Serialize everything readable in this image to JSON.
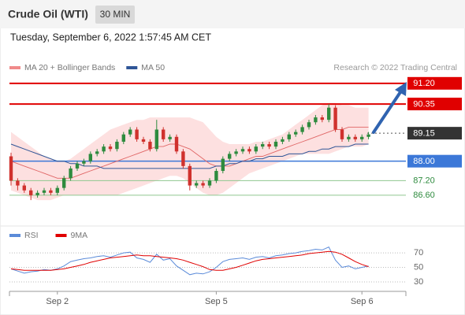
{
  "chart_data": [
    {
      "type": "candlestick",
      "title": "Crude Oil (WTI)",
      "timeframe": "30 MIN",
      "subtitle": "Tuesday, September 6, 2022 1:57:45 AM CET",
      "source": "Research © 2022 Trading Central",
      "ylim": [
        85.4,
        91.55
      ],
      "up_color": "#2e8b3e",
      "down_color": "#d0312d",
      "open": [
        88.2,
        87.2,
        87.0,
        86.8,
        86.6,
        86.7,
        86.8,
        86.7,
        86.9,
        87.3,
        87.7,
        87.9,
        88.0,
        88.3,
        88.4,
        88.6,
        88.5,
        88.8,
        89.1,
        89.3,
        88.9,
        88.8,
        88.5,
        89.3,
        88.9,
        89.0,
        88.4,
        87.8,
        87.0,
        87.1,
        87.0,
        87.2,
        87.6,
        88.1,
        88.3,
        88.4,
        88.5,
        88.4,
        88.6,
        88.7,
        88.6,
        88.8,
        88.9,
        89.1,
        89.2,
        89.4,
        89.6,
        89.8,
        89.7,
        90.2,
        89.3,
        88.9,
        89.0,
        88.9,
        89.0
      ],
      "high": [
        88.35,
        87.3,
        87.1,
        86.9,
        86.8,
        86.9,
        86.9,
        87.0,
        87.4,
        87.8,
        88.0,
        88.1,
        88.4,
        88.5,
        88.7,
        88.7,
        88.9,
        89.2,
        89.4,
        89.4,
        89.0,
        88.9,
        89.7,
        89.4,
        89.1,
        89.1,
        88.5,
        87.9,
        87.2,
        87.2,
        87.3,
        87.7,
        88.2,
        88.4,
        88.5,
        88.6,
        88.6,
        88.7,
        88.8,
        88.8,
        88.9,
        89.0,
        89.2,
        89.3,
        89.5,
        89.7,
        89.9,
        89.9,
        90.35,
        90.3,
        89.4,
        89.1,
        89.1,
        89.1,
        89.2
      ],
      "low": [
        87.0,
        86.8,
        86.7,
        86.4,
        86.5,
        86.6,
        86.6,
        86.6,
        86.8,
        87.2,
        87.6,
        87.8,
        87.9,
        88.2,
        88.3,
        88.4,
        88.4,
        88.7,
        89.0,
        88.8,
        88.7,
        88.4,
        88.4,
        88.8,
        88.8,
        88.3,
        87.7,
        86.8,
        86.9,
        86.9,
        86.9,
        87.1,
        87.5,
        88.0,
        88.2,
        88.3,
        88.3,
        88.3,
        88.5,
        88.5,
        88.5,
        88.7,
        88.8,
        89.0,
        89.1,
        89.3,
        89.5,
        89.6,
        89.6,
        89.2,
        88.8,
        88.8,
        88.8,
        88.8,
        88.9
      ],
      "close": [
        87.2,
        87.0,
        86.8,
        86.6,
        86.7,
        86.8,
        86.7,
        86.9,
        87.3,
        87.7,
        87.9,
        88.0,
        88.3,
        88.4,
        88.6,
        88.5,
        88.8,
        89.1,
        89.3,
        88.9,
        88.8,
        88.5,
        89.3,
        88.9,
        89.0,
        88.4,
        87.8,
        87.0,
        87.1,
        87.0,
        87.2,
        87.6,
        88.1,
        88.3,
        88.4,
        88.5,
        88.4,
        88.6,
        88.7,
        88.6,
        88.8,
        88.9,
        89.1,
        89.2,
        89.4,
        89.6,
        89.8,
        89.7,
        90.2,
        89.3,
        88.9,
        89.0,
        88.9,
        89.0,
        89.1
      ],
      "series": [
        {
          "name": "MA 20 + Bollinger Bands",
          "color": "#e06666",
          "band_color": "#fde0e0",
          "values": [
            88.0,
            87.9,
            87.8,
            87.7,
            87.6,
            87.5,
            87.4,
            87.3,
            87.3,
            87.3,
            87.4,
            87.5,
            87.6,
            87.7,
            87.8,
            87.9,
            88.0,
            88.1,
            88.2,
            88.3,
            88.4,
            88.5,
            88.6,
            88.6,
            88.7,
            88.7,
            88.6,
            88.5,
            88.3,
            88.1,
            87.9,
            87.8,
            87.8,
            87.8,
            87.9,
            88.0,
            88.1,
            88.2,
            88.2,
            88.3,
            88.4,
            88.5,
            88.6,
            88.7,
            88.8,
            88.9,
            89.0,
            89.1,
            89.2,
            89.3,
            89.3,
            89.4,
            89.4,
            89.4,
            89.4
          ],
          "upper": [
            89.2,
            89.0,
            88.8,
            88.6,
            88.4,
            88.2,
            88.1,
            88.0,
            88.0,
            88.1,
            88.3,
            88.5,
            88.7,
            88.9,
            89.1,
            89.3,
            89.4,
            89.5,
            89.6,
            89.7,
            89.7,
            89.8,
            89.8,
            89.8,
            89.8,
            89.8,
            89.8,
            89.8,
            89.7,
            89.6,
            89.3,
            89.0,
            88.8,
            88.7,
            88.7,
            88.7,
            88.7,
            88.8,
            88.8,
            88.9,
            89.0,
            89.1,
            89.3,
            89.5,
            89.7,
            89.9,
            90.1,
            90.3,
            90.4,
            90.4,
            90.3,
            90.3,
            90.2,
            90.2,
            90.2
          ],
          "lower": [
            86.8,
            86.7,
            86.6,
            86.5,
            86.4,
            86.4,
            86.4,
            86.5,
            86.6,
            86.6,
            86.6,
            86.6,
            86.6,
            86.6,
            86.6,
            86.6,
            86.6,
            86.7,
            86.8,
            86.9,
            87.0,
            87.1,
            87.2,
            87.3,
            87.4,
            87.4,
            87.3,
            87.1,
            86.9,
            86.7,
            86.6,
            86.6,
            86.7,
            86.9,
            87.1,
            87.3,
            87.5,
            87.6,
            87.7,
            87.8,
            87.9,
            88.0,
            88.1,
            88.2,
            88.3,
            88.3,
            88.3,
            88.3,
            88.3,
            88.4,
            88.5,
            88.6,
            88.6,
            88.6,
            88.7
          ]
        },
        {
          "name": "MA 50",
          "color": "#2f5597",
          "values": [
            88.7,
            88.6,
            88.5,
            88.4,
            88.3,
            88.2,
            88.1,
            88.0,
            88.0,
            87.9,
            87.9,
            87.8,
            87.8,
            87.8,
            87.7,
            87.7,
            87.7,
            87.7,
            87.7,
            87.7,
            87.7,
            87.7,
            87.7,
            87.7,
            87.7,
            87.7,
            87.7,
            87.7,
            87.7,
            87.7,
            87.7,
            87.8,
            87.8,
            87.9,
            87.9,
            88.0,
            88.0,
            88.1,
            88.1,
            88.2,
            88.2,
            88.2,
            88.3,
            88.3,
            88.3,
            88.4,
            88.4,
            88.5,
            88.5,
            88.6,
            88.6,
            88.6,
            88.7,
            88.7,
            88.7
          ]
        }
      ],
      "levels": [
        {
          "value": 91.2,
          "label": "91.20",
          "color": "#e00000",
          "style": "box"
        },
        {
          "value": 90.35,
          "label": "90.35",
          "color": "#e00000",
          "style": "box"
        },
        {
          "value": 89.15,
          "label": "89.15",
          "color": "#333333",
          "style": "box-dotted"
        },
        {
          "value": 88.0,
          "label": "88.00",
          "color": "#3c78d8",
          "style": "box"
        },
        {
          "value": 87.2,
          "label": "87.20",
          "color": "#2e8b3e",
          "style": "text"
        },
        {
          "value": 86.6,
          "label": "86.60",
          "color": "#2e8b3e",
          "style": "text"
        }
      ]
    },
    {
      "type": "line",
      "categories": [
        null,
        null,
        null,
        null,
        null,
        null,
        null,
        "Sep 2",
        null,
        null,
        null,
        null,
        null,
        null,
        null,
        null,
        null,
        null,
        null,
        null,
        null,
        null,
        null,
        null,
        null,
        null,
        null,
        null,
        null,
        null,
        null,
        "Sep 5",
        null,
        null,
        null,
        null,
        null,
        null,
        null,
        null,
        null,
        null,
        null,
        null,
        null,
        null,
        null,
        null,
        null,
        null,
        null,
        null,
        null,
        "Sep 6",
        null
      ],
      "ylim": [
        17,
        82
      ],
      "yticks": [
        30,
        50,
        70
      ],
      "grid": true,
      "series": [
        {
          "name": "RSI",
          "color": "#5b8bd9",
          "values": [
            48,
            45,
            42,
            44,
            45,
            47,
            46,
            48,
            52,
            58,
            60,
            62,
            63,
            65,
            66,
            64,
            67,
            70,
            71,
            63,
            61,
            57,
            68,
            60,
            62,
            52,
            46,
            40,
            42,
            41,
            44,
            50,
            58,
            61,
            62,
            63,
            61,
            64,
            65,
            63,
            66,
            67,
            69,
            70,
            72,
            73,
            75,
            74,
            78,
            60,
            50,
            52,
            48,
            50,
            52
          ]
        },
        {
          "name": "9MA",
          "color": "#e00000",
          "values": [
            48,
            47,
            46,
            46,
            46,
            46,
            46,
            47,
            48,
            50,
            52,
            54,
            57,
            59,
            61,
            63,
            64,
            65,
            66,
            67,
            66,
            66,
            65,
            64,
            63,
            62,
            60,
            57,
            54,
            51,
            47,
            46,
            46,
            48,
            50,
            53,
            56,
            59,
            61,
            62,
            63,
            64,
            65,
            66,
            67,
            69,
            70,
            71,
            72,
            71,
            68,
            63,
            58,
            54,
            51
          ]
        }
      ]
    }
  ]
}
